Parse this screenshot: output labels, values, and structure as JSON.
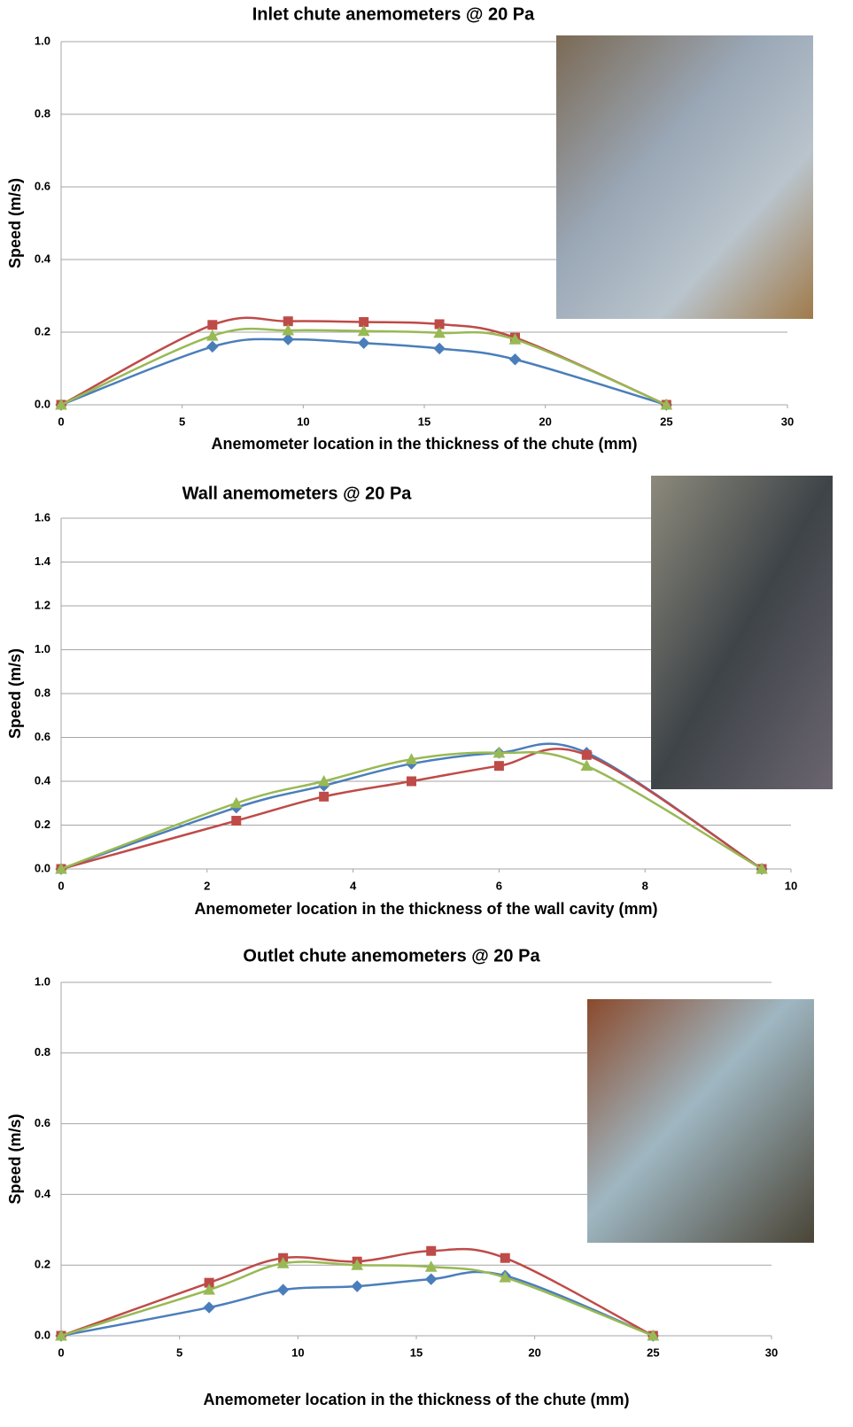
{
  "chart_data": [
    {
      "type": "line",
      "title": "Inlet chute anemometers @ 20 Pa",
      "x_label": "Anemometer  location  in the thickness  of the chute (mm)",
      "y_label": "Speed (m/s)",
      "x": [
        0,
        6.25,
        9.375,
        12.5,
        15.625,
        18.75,
        25
      ],
      "series": [
        {
          "color": "#4a7ebb",
          "marker": "diamond",
          "values": [
            0,
            0.16,
            0.18,
            0.17,
            0.155,
            0.125,
            0
          ]
        },
        {
          "color": "#be4b48",
          "marker": "square",
          "values": [
            0,
            0.22,
            0.23,
            0.228,
            0.222,
            0.185,
            0
          ]
        },
        {
          "color": "#98b954",
          "marker": "triangle",
          "values": [
            0,
            0.19,
            0.205,
            0.203,
            0.198,
            0.18,
            0
          ]
        }
      ],
      "xlim": [
        0,
        30
      ],
      "xticks": [
        0,
        5,
        10,
        15,
        20,
        25,
        30
      ],
      "ylim": [
        0,
        1
      ],
      "yticks": [
        {
          "value": 0,
          "label": "0.0"
        },
        {
          "value": 0.2,
          "label": "0.2"
        },
        {
          "value": 0.4,
          "label": "0.4"
        },
        {
          "value": 0.6,
          "label": "0.6"
        },
        {
          "value": 0.8,
          "label": "0.8"
        },
        {
          "value": 1,
          "label": "1.0"
        }
      ],
      "grid": true,
      "smooth": true
    },
    {
      "type": "line",
      "title": "Wall anemometers @ 20 Pa",
      "x_label": "Anemometer location in the thickness of the wall cavity (mm)",
      "y_label": "Speed (m/s)",
      "x": [
        0,
        2.4,
        3.6,
        4.8,
        6,
        7.2,
        9.6
      ],
      "series": [
        {
          "color": "#4a7ebb",
          "marker": "diamond",
          "values": [
            0,
            0.28,
            0.38,
            0.48,
            0.53,
            0.53,
            0
          ]
        },
        {
          "color": "#be4b48",
          "marker": "square",
          "values": [
            0,
            0.22,
            0.33,
            0.4,
            0.47,
            0.52,
            0
          ]
        },
        {
          "color": "#98b954",
          "marker": "triangle",
          "values": [
            0,
            0.3,
            0.4,
            0.5,
            0.53,
            0.47,
            0
          ]
        }
      ],
      "xlim": [
        0,
        10
      ],
      "xticks": [
        0,
        2,
        4,
        6,
        8,
        10
      ],
      "ylim": [
        0,
        1.6
      ],
      "yticks": [
        {
          "value": 0,
          "label": "0.0"
        },
        {
          "value": 0.2,
          "label": "0.2"
        },
        {
          "value": 0.4,
          "label": "0.4"
        },
        {
          "value": 0.6,
          "label": "0.6"
        },
        {
          "value": 0.8,
          "label": "0.8"
        },
        {
          "value": 1,
          "label": "1.0"
        },
        {
          "value": 1.2,
          "label": "1.2"
        },
        {
          "value": 1.4,
          "label": "1.4"
        },
        {
          "value": 1.6,
          "label": "1.6"
        }
      ],
      "grid": true,
      "smooth": true
    },
    {
      "type": "line",
      "title": "Outlet chute anemometers @ 20 Pa",
      "x_label": "Anemometer  location  in the thickness  of the chute (mm)",
      "y_label": "Speed (m/s)",
      "x": [
        0,
        6.25,
        9.375,
        12.5,
        15.625,
        18.75,
        25
      ],
      "series": [
        {
          "color": "#4a7ebb",
          "marker": "diamond",
          "values": [
            0,
            0.08,
            0.13,
            0.14,
            0.16,
            0.17,
            0
          ]
        },
        {
          "color": "#be4b48",
          "marker": "square",
          "values": [
            0,
            0.15,
            0.22,
            0.21,
            0.24,
            0.22,
            0
          ]
        },
        {
          "color": "#98b954",
          "marker": "triangle",
          "values": [
            0,
            0.13,
            0.205,
            0.2,
            0.195,
            0.165,
            0
          ]
        }
      ],
      "xlim": [
        0,
        30
      ],
      "xticks": [
        0,
        5,
        10,
        15,
        20,
        25,
        30
      ],
      "ylim": [
        0,
        1
      ],
      "yticks": [
        {
          "value": 0,
          "label": "0.0"
        },
        {
          "value": 0.2,
          "label": "0.2"
        },
        {
          "value": 0.4,
          "label": "0.4"
        },
        {
          "value": 0.6,
          "label": "0.6"
        },
        {
          "value": 0.8,
          "label": "0.8"
        },
        {
          "value": 1,
          "label": "1.0"
        }
      ],
      "grid": true,
      "smooth": true
    }
  ]
}
